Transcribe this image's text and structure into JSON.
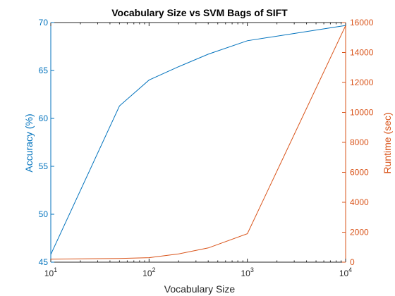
{
  "chart_data": {
    "type": "line",
    "title": "Vocabulary Size vs SVM Bags of SIFT",
    "xlabel": "Vocabulary Size",
    "x_scale": "log",
    "xlim": [
      10,
      10000
    ],
    "x_ticks": [
      {
        "value": 10,
        "base": "10",
        "exp": "1"
      },
      {
        "value": 100,
        "base": "10",
        "exp": "2"
      },
      {
        "value": 1000,
        "base": "10",
        "exp": "3"
      },
      {
        "value": 10000,
        "base": "10",
        "exp": "4"
      }
    ],
    "y_left": {
      "label": "Accuracy (%)",
      "lim": [
        45,
        70
      ],
      "ticks": [
        "45",
        "50",
        "55",
        "60",
        "65",
        "70"
      ],
      "color": "#0072BD"
    },
    "y_right": {
      "label": "Runtime (sec)",
      "lim": [
        0,
        16000
      ],
      "ticks": [
        "0",
        "2000",
        "4000",
        "6000",
        "8000",
        "10000",
        "12000",
        "14000",
        "16000"
      ],
      "color": "#D95319"
    },
    "x": [
      10,
      50,
      100,
      200,
      400,
      1000,
      10000
    ],
    "series": [
      {
        "axis": "left",
        "color": "#0072BD",
        "values": [
          45.8,
          61.3,
          64.0,
          65.4,
          66.7,
          68.1,
          69.7
        ]
      },
      {
        "axis": "right",
        "color": "#D95319",
        "values": [
          200,
          250,
          300,
          550,
          950,
          1900,
          15800
        ]
      }
    ],
    "grid": false
  }
}
